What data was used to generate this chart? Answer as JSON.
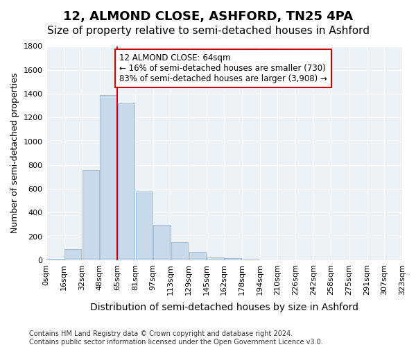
{
  "title": "12, ALMOND CLOSE, ASHFORD, TN25 4PA",
  "subtitle": "Size of property relative to semi-detached houses in Ashford",
  "xlabel": "Distribution of semi-detached houses by size in Ashford",
  "ylabel": "Number of semi-detached properties",
  "bar_color": "#c8d9ea",
  "bar_edgecolor": "#a8c0d8",
  "background_color": "#ffffff",
  "plot_bg_color": "#edf2f7",
  "grid_color": "#ffffff",
  "bin_labels": [
    "0sqm",
    "16sqm",
    "32sqm",
    "48sqm",
    "65sqm",
    "81sqm",
    "97sqm",
    "113sqm",
    "129sqm",
    "145sqm",
    "162sqm",
    "178sqm",
    "194sqm",
    "210sqm",
    "226sqm",
    "242sqm",
    "258sqm",
    "275sqm",
    "291sqm",
    "307sqm",
    "323sqm"
  ],
  "values": [
    10,
    90,
    760,
    1390,
    1320,
    580,
    295,
    150,
    70,
    25,
    15,
    5,
    2,
    0,
    0,
    0,
    0,
    0,
    0,
    0
  ],
  "annotation_text": "12 ALMOND CLOSE: 64sqm\n← 16% of semi-detached houses are smaller (730)\n83% of semi-detached houses are larger (3,908) →",
  "annotation_box_color": "#ffffff",
  "annotation_box_edgecolor": "#cc0000",
  "vline_color": "#cc0000",
  "property_bin_index": 4,
  "ylim": [
    0,
    1800
  ],
  "footnote": "Contains HM Land Registry data © Crown copyright and database right 2024.\nContains public sector information licensed under the Open Government Licence v3.0.",
  "title_fontsize": 13,
  "subtitle_fontsize": 11,
  "xlabel_fontsize": 10,
  "ylabel_fontsize": 9,
  "tick_fontsize": 8,
  "annotation_fontsize": 8.5,
  "footnote_fontsize": 7
}
